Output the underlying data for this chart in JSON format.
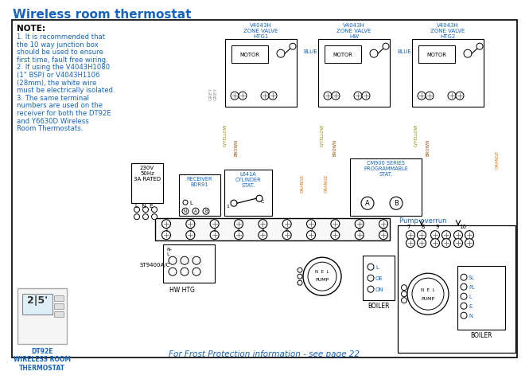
{
  "title": "Wireless room thermostat",
  "title_color": "#1565C0",
  "bg": "#ffffff",
  "note_header": "NOTE:",
  "note_lines": [
    "1. It is recommended that",
    "the 10 way junction box",
    "should be used to ensure",
    "first time, fault free wiring.",
    "2. If using the V4043H1080",
    "(1\" BSP) or V4043H1106",
    "(28mm), the white wire",
    "must be electrically isolated.",
    "3. The same terminal",
    "numbers are used on the",
    "receiver for both the DT92E",
    "and Y6630D Wireless",
    "Room Thermostats."
  ],
  "zv_labels": [
    "V4043H\nZONE VALVE\nHTG1",
    "V4043H\nZONE VALVE\nHW",
    "V4043H\nZONE VALVE\nHTG2"
  ],
  "lbl_color": "#1565C0",
  "grey": "#909090",
  "blue": "#1565C0",
  "brown": "#964B00",
  "gyellow": "#8B8B00",
  "orange": "#E07000",
  "black": "#000000",
  "bottom_note": "For Frost Protection information - see page 22",
  "thermostat_label": "DT92E\nWIRELESS ROOM\nTHERMOSTAT",
  "pump_overrun": "Pump overrun",
  "boiler": "BOILER",
  "cm900": "CM900 SERIES\nPROGRAMMABLE\nSTAT.",
  "receiver": "RECEIVER\nBDR91",
  "cyl_stat": "L641A\nCYLINDER\nSTAT.",
  "power_txt": "230V\n50Hz\n3A RATED",
  "st9400": "ST9400A/C",
  "hw_htg": "HW HTG"
}
